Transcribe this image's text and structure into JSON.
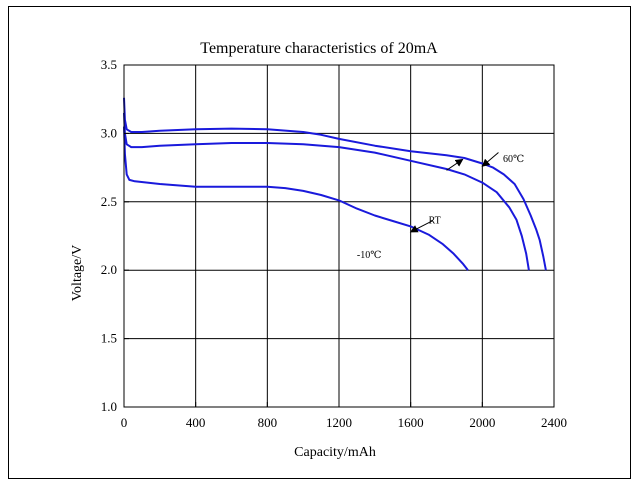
{
  "chart_data": {
    "type": "line",
    "title": "Temperature  characteristics of 20mA",
    "xlabel": "Capacity/mAh",
    "ylabel": "Voltage/V",
    "xlim": [
      0,
      2400
    ],
    "ylim": [
      1.0,
      3.5
    ],
    "xticks": [
      0,
      400,
      800,
      1200,
      1600,
      2000,
      2400
    ],
    "xtick_labels": [
      "0",
      "400",
      "800",
      "1200",
      "1600",
      "2000",
      "2400"
    ],
    "yticks": [
      1.0,
      1.5,
      2.0,
      2.5,
      3.0,
      3.5
    ],
    "ytick_labels": [
      "1.0",
      "1.5",
      "2.0",
      "2.5",
      "3.0",
      "3.5"
    ],
    "grid": true,
    "line_color": "#1a1adc",
    "series": [
      {
        "name": "60℃",
        "points": [
          [
            0,
            3.26
          ],
          [
            5,
            3.1
          ],
          [
            15,
            3.03
          ],
          [
            40,
            3.01
          ],
          [
            100,
            3.01
          ],
          [
            200,
            3.02
          ],
          [
            400,
            3.03
          ],
          [
            600,
            3.035
          ],
          [
            800,
            3.03
          ],
          [
            1000,
            3.01
          ],
          [
            1100,
            2.99
          ],
          [
            1200,
            2.96
          ],
          [
            1400,
            2.91
          ],
          [
            1600,
            2.87
          ],
          [
            1800,
            2.84
          ],
          [
            1900,
            2.82
          ],
          [
            2000,
            2.78
          ],
          [
            2060,
            2.75
          ],
          [
            2120,
            2.7
          ],
          [
            2180,
            2.63
          ],
          [
            2230,
            2.52
          ],
          [
            2270,
            2.4
          ],
          [
            2300,
            2.3
          ],
          [
            2320,
            2.22
          ],
          [
            2340,
            2.1
          ],
          [
            2355,
            2.0
          ]
        ]
      },
      {
        "name": "RT",
        "points": [
          [
            0,
            3.15
          ],
          [
            5,
            3.0
          ],
          [
            15,
            2.92
          ],
          [
            40,
            2.9
          ],
          [
            100,
            2.9
          ],
          [
            200,
            2.91
          ],
          [
            400,
            2.92
          ],
          [
            600,
            2.93
          ],
          [
            800,
            2.93
          ],
          [
            1000,
            2.92
          ],
          [
            1200,
            2.9
          ],
          [
            1400,
            2.86
          ],
          [
            1600,
            2.8
          ],
          [
            1800,
            2.74
          ],
          [
            1900,
            2.7
          ],
          [
            2000,
            2.64
          ],
          [
            2080,
            2.57
          ],
          [
            2150,
            2.46
          ],
          [
            2190,
            2.37
          ],
          [
            2220,
            2.25
          ],
          [
            2245,
            2.12
          ],
          [
            2260,
            2.0
          ]
        ]
      },
      {
        "name": "-10℃",
        "points": [
          [
            0,
            3.05
          ],
          [
            5,
            2.85
          ],
          [
            15,
            2.7
          ],
          [
            30,
            2.66
          ],
          [
            60,
            2.65
          ],
          [
            200,
            2.63
          ],
          [
            400,
            2.61
          ],
          [
            600,
            2.61
          ],
          [
            800,
            2.61
          ],
          [
            900,
            2.6
          ],
          [
            1000,
            2.58
          ],
          [
            1100,
            2.55
          ],
          [
            1200,
            2.51
          ],
          [
            1300,
            2.45
          ],
          [
            1400,
            2.4
          ],
          [
            1500,
            2.36
          ],
          [
            1600,
            2.32
          ],
          [
            1700,
            2.26
          ],
          [
            1780,
            2.19
          ],
          [
            1840,
            2.12
          ],
          [
            1890,
            2.05
          ],
          [
            1920,
            2.0
          ]
        ]
      }
    ],
    "annotations": [
      {
        "text": "60℃",
        "x": 2115,
        "y": 2.79
      },
      {
        "text": "RT",
        "x": 1700,
        "y": 2.34
      },
      {
        "text": "-10℃",
        "x": 1300,
        "y": 2.09
      }
    ],
    "arrows": [
      {
        "from": [
          2090,
          2.86
        ],
        "to": [
          2000,
          2.76
        ]
      },
      {
        "from": [
          1800,
          2.73
        ],
        "to": [
          1890,
          2.81
        ]
      },
      {
        "from": [
          1720,
          2.36
        ],
        "to": [
          1600,
          2.28
        ]
      }
    ]
  }
}
